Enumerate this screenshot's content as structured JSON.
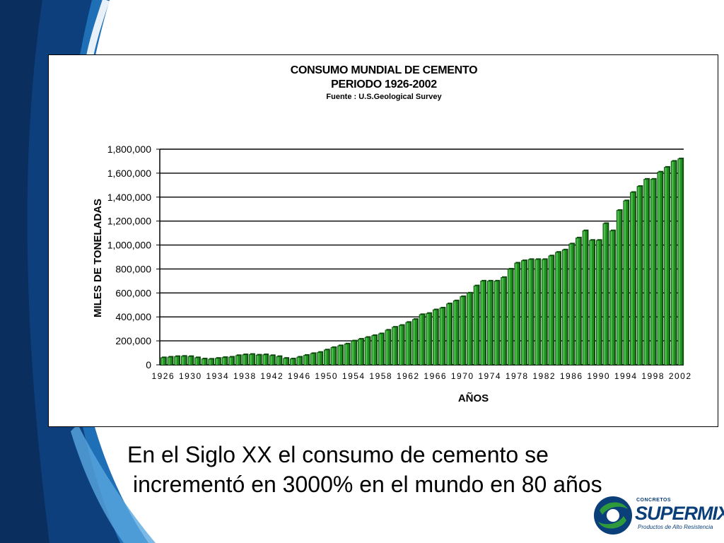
{
  "colors": {
    "background_blue": "#1f6fb6",
    "dark_blue": "#0d3f7c",
    "bar_green": "#1f8f1f",
    "bar_dark": "#0d4a0d",
    "logo_blue": "#0a3f7a",
    "logo_green": "#2e9a3b"
  },
  "chart_data": {
    "type": "bar",
    "title": "CONSUMO MUNDIAL  DE  CEMENTO",
    "subtitle": "PERIODO   1926-2002",
    "source": "Fuente  : U.S.Geological   Survey",
    "xlabel": "AÑOS",
    "ylabel": "MILES DE TONELADAS",
    "ylim": [
      0,
      1800000
    ],
    "yticks": [
      0,
      200000,
      400000,
      600000,
      800000,
      1000000,
      1200000,
      1400000,
      1600000,
      1800000
    ],
    "ytick_labels": [
      "0",
      "200,000",
      "400,000",
      "600,000",
      "800,000",
      "1,000,000",
      "1,200,000",
      "1,400,000",
      "1,600,000",
      "1,800,000"
    ],
    "xtick_labels": [
      "1926",
      "1930",
      "1934",
      "1938",
      "1942",
      "1946",
      "1950",
      "1954",
      "1958",
      "1962",
      "1966",
      "1970",
      "1974",
      "1978",
      "1982",
      "1986",
      "1990",
      "1994",
      "1998",
      "2002"
    ],
    "grid": true,
    "categories": [
      "1926",
      "1927",
      "1928",
      "1929",
      "1930",
      "1931",
      "1932",
      "1933",
      "1934",
      "1935",
      "1936",
      "1937",
      "1938",
      "1939",
      "1940",
      "1941",
      "1942",
      "1943",
      "1944",
      "1945",
      "1946",
      "1947",
      "1948",
      "1949",
      "1950",
      "1951",
      "1952",
      "1953",
      "1954",
      "1955",
      "1956",
      "1957",
      "1958",
      "1959",
      "1960",
      "1961",
      "1962",
      "1963",
      "1964",
      "1965",
      "1966",
      "1967",
      "1968",
      "1969",
      "1970",
      "1971",
      "1972",
      "1973",
      "1974",
      "1975",
      "1976",
      "1977",
      "1978",
      "1979",
      "1980",
      "1981",
      "1982",
      "1983",
      "1984",
      "1985",
      "1986",
      "1987",
      "1988",
      "1989",
      "1990",
      "1991",
      "1992",
      "1993",
      "1994",
      "1995",
      "1996",
      "1997",
      "1998",
      "1999",
      "2000",
      "2001",
      "2002"
    ],
    "values": [
      60000,
      65000,
      70000,
      72000,
      70000,
      60000,
      50000,
      48000,
      55000,
      62000,
      65000,
      78000,
      85000,
      88000,
      82000,
      85000,
      78000,
      70000,
      55000,
      50000,
      65000,
      80000,
      95000,
      105000,
      125000,
      145000,
      160000,
      175000,
      200000,
      215000,
      230000,
      245000,
      260000,
      290000,
      315000,
      330000,
      355000,
      380000,
      420000,
      430000,
      460000,
      475000,
      510000,
      535000,
      570000,
      600000,
      660000,
      700000,
      700000,
      700000,
      730000,
      800000,
      850000,
      870000,
      880000,
      880000,
      880000,
      910000,
      940000,
      960000,
      1010000,
      1060000,
      1120000,
      1040000,
      1040000,
      1180000,
      1120000,
      1290000,
      1370000,
      1440000,
      1490000,
      1550000,
      1550000,
      1610000,
      1650000,
      1700000,
      1720000
    ]
  },
  "caption": {
    "line1": "En el Siglo XX el consumo de cemento se",
    "line2": "incrementó en 3000% en el mundo en 80 años"
  },
  "logo": {
    "small_text": "CONCRETOS",
    "brand": "SUPERMIX",
    "tagline": "Productos de Alto Resistencia"
  }
}
